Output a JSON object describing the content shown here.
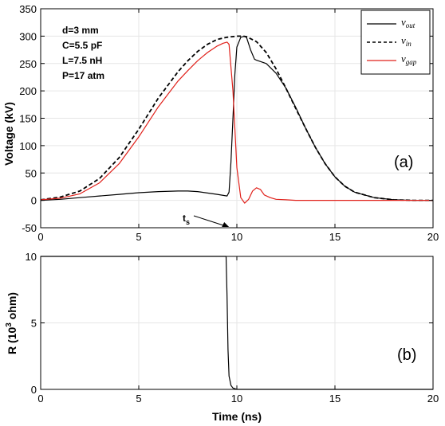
{
  "colors": {
    "vout": "#000000",
    "vin": "#000000",
    "vgap": "#e0201a",
    "grid": "#e6e6e6"
  },
  "chart_data": [
    {
      "type": "line",
      "panel_tag": "(a)",
      "xlabel": "",
      "ylabel": "Voltage (kV)",
      "xlim": [
        0,
        20
      ],
      "ylim": [
        -50,
        350
      ],
      "xticks": [
        "0",
        "5",
        "10",
        "15",
        "20"
      ],
      "yticks": [
        "-50",
        "0",
        "50",
        "100",
        "150",
        "200",
        "250",
        "300",
        "350"
      ],
      "grid": true,
      "legend_position": "top-right",
      "annotations": [
        "d=3 mm",
        "C=5.5 pF",
        "L=7.5 nH",
        "P=17 atm"
      ],
      "marker": {
        "label": "t",
        "sub": "s",
        "x": 9.6
      },
      "series": [
        {
          "name_main": "v",
          "name_sub": "out",
          "style": "solid",
          "color_key": "vout",
          "x": [
            0,
            1,
            2,
            3,
            4,
            5,
            6,
            7,
            7.5,
            8,
            9,
            9.5,
            9.6,
            9.7,
            9.8,
            9.9,
            10,
            10.2,
            10.4,
            10.5,
            10.7,
            10.9,
            11,
            11.5,
            12,
            12.5,
            13,
            13.5,
            14,
            14.5,
            15,
            15.5,
            16,
            17,
            18,
            19,
            20
          ],
          "y": [
            0,
            2,
            5,
            8,
            11,
            14,
            16,
            17,
            17,
            16,
            11,
            8,
            15,
            70,
            150,
            230,
            280,
            298,
            300,
            297,
            275,
            258,
            256,
            250,
            232,
            205,
            170,
            132,
            97,
            67,
            43,
            26,
            15,
            5,
            1,
            0,
            0
          ]
        },
        {
          "name_main": "v",
          "name_sub": "in",
          "style": "dashed",
          "color_key": "vin",
          "x": [
            0,
            1,
            2,
            3,
            4,
            5,
            6,
            7,
            7.5,
            8,
            8.5,
            9,
            9.5,
            10,
            10.3,
            10.5,
            11,
            11.5,
            12,
            12.5,
            13,
            13.5,
            14,
            14.5,
            15,
            15.5,
            16,
            17,
            18,
            19,
            20
          ],
          "y": [
            1,
            6,
            17,
            40,
            78,
            130,
            187,
            235,
            255,
            272,
            285,
            294,
            298,
            300,
            300,
            299,
            290,
            270,
            240,
            205,
            168,
            132,
            97,
            67,
            43,
            26,
            15,
            5,
            1,
            0,
            0
          ]
        },
        {
          "name_main": "v",
          "name_sub": "gap",
          "style": "solid",
          "color_key": "vgap",
          "x": [
            0,
            1,
            2,
            3,
            4,
            5,
            6,
            7,
            7.5,
            8,
            8.5,
            9,
            9.3,
            9.5,
            9.6,
            9.8,
            10,
            10.2,
            10.4,
            10.6,
            10.8,
            11,
            11.2,
            11.4,
            11.7,
            12,
            12.5,
            13,
            14,
            15,
            16,
            17,
            18,
            19,
            20
          ],
          "y": [
            1,
            4,
            12,
            32,
            67,
            116,
            171,
            218,
            237,
            255,
            270,
            282,
            287,
            289,
            285,
            200,
            60,
            5,
            -5,
            2,
            17,
            23,
            20,
            10,
            5,
            2,
            1,
            0,
            0,
            0,
            0,
            0,
            0,
            0,
            0
          ]
        }
      ]
    },
    {
      "type": "line",
      "panel_tag": "(b)",
      "xlabel": "Time (ns)",
      "ylabel_main": "R (10",
      "ylabel_sup": "3",
      "ylabel_tail": " ohm)",
      "xlim": [
        0,
        20
      ],
      "ylim": [
        0,
        10
      ],
      "xticks": [
        "0",
        "5",
        "10",
        "15",
        "20"
      ],
      "yticks": [
        "0",
        "5",
        "10"
      ],
      "grid": true,
      "series": [
        {
          "style": "solid",
          "color_key": "vout",
          "x": [
            0,
            9.45,
            9.5,
            9.55,
            9.6,
            9.7,
            9.8,
            10,
            20
          ],
          "y": [
            10,
            10,
            7,
            3,
            1,
            0.3,
            0.1,
            0,
            0
          ]
        }
      ]
    }
  ]
}
